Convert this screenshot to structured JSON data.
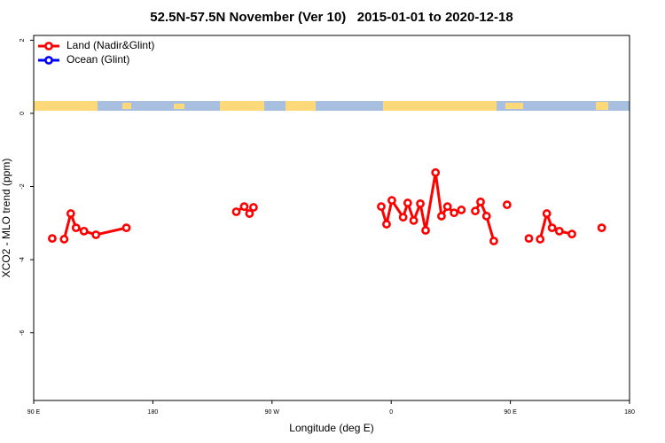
{
  "chart_data": {
    "type": "line",
    "title": "52.5N-57.5N November (Ver 10)   2015-01-01 to 2020-12-18",
    "x_label": "Longitude (deg E)",
    "y_label": "XCO2 - MLO trend (ppm)",
    "xlim": [
      90,
      540
    ],
    "ylim": [
      -7.85,
      2.13
    ],
    "xticks": [
      {
        "value": 90,
        "label": "90 E"
      },
      180,
      {
        "value": 270,
        "label": "90 W"
      },
      {
        "value": 360,
        "label": "0"
      },
      {
        "value": 450,
        "label": "90 E"
      },
      {
        "value": 540,
        "label": "180"
      }
    ],
    "yticks": [
      2,
      0,
      -2,
      -4,
      -6
    ],
    "legend": "upper left",
    "series": [
      {
        "name": "Land (Nadir&Glint)",
        "color": "#ff0000",
        "x": [
          104,
          null,
          113,
          118,
          122,
          128,
          137,
          160,
          null,
          243,
          249,
          253,
          256,
          null,
          352.5,
          356.5,
          360.5,
          369,
          372.5,
          377,
          382,
          386,
          393.5,
          398,
          402.5,
          407.5,
          413,
          null,
          423.5,
          427.5,
          432,
          437.5,
          null,
          447.5,
          null,
          464,
          null,
          472.5,
          477.5,
          481.5,
          487,
          496.5,
          null,
          519
        ],
        "values": [
          -3.42,
          null,
          -3.44,
          -2.74,
          -3.13,
          -3.22,
          -3.32,
          -3.13,
          null,
          -2.69,
          -2.55,
          -2.74,
          -2.57,
          null,
          -2.55,
          -3.03,
          -2.38,
          -2.84,
          -2.45,
          -2.93,
          -2.47,
          -3.2,
          -1.62,
          -2.81,
          -2.55,
          -2.72,
          -2.64,
          null,
          -2.67,
          -2.42,
          -2.81,
          -3.49,
          null,
          -2.5,
          null,
          -3.42,
          null,
          -3.44,
          -2.74,
          -3.13,
          -3.22,
          -3.3,
          null,
          -3.13
        ]
      },
      {
        "name": "Ocean (Glint)",
        "color": "#0000ff",
        "x": [],
        "values": []
      }
    ]
  }
}
